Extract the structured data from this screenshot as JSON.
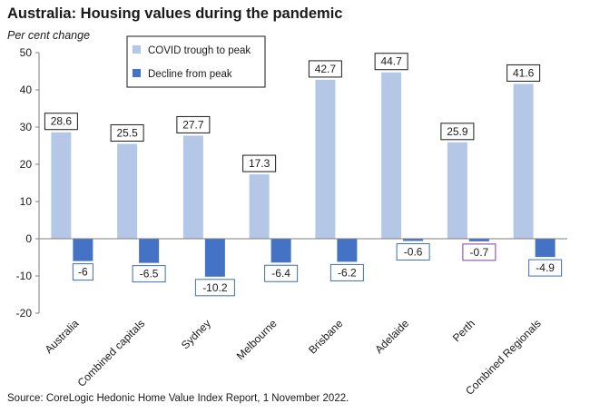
{
  "title": "Australia: Housing values during the pandemic",
  "source": "Source: CoreLogic Hedonic Home Value Index Report, 1 November 2022.",
  "chart_data": {
    "type": "bar",
    "title": "Australia: Housing values during the pandemic",
    "ylabel": "Per cent change",
    "xlabel": "",
    "ylim": [
      -20,
      50
    ],
    "yticks": [
      -20,
      -10,
      0,
      10,
      20,
      30,
      40,
      50
    ],
    "categories": [
      "Australia",
      "Combined capitals",
      "Sydney",
      "Melbourne",
      "Brisbane",
      "Adelaide",
      "Perth",
      "Combined Regionals"
    ],
    "series": [
      {
        "name": "COVID trough to peak",
        "color": "#b4c7e7",
        "values": [
          28.6,
          25.5,
          27.7,
          17.3,
          42.7,
          44.7,
          25.9,
          41.6
        ]
      },
      {
        "name": "Decline from peak",
        "color": "#4472c4",
        "values": [
          -6,
          -6.5,
          -10.2,
          -6.4,
          -6.2,
          -0.6,
          -0.7,
          -4.9
        ]
      }
    ],
    "label_border_colors": {
      "COVID trough to peak": [
        "#1a1a1a",
        "#1a1a1a",
        "#1a1a1a",
        "#1a1a1a",
        "#1a1a1a",
        "#1a1a1a",
        "#1a1a1a",
        "#1a1a1a"
      ],
      "Decline from peak": [
        "#3f6fa8",
        "#3f6fa8",
        "#3f6fa8",
        "#3f6fa8",
        "#3f6fa8",
        "#3f6fa8",
        "#7b3f9a",
        "#3f6fa8"
      ]
    },
    "legend_position": "top-left",
    "grid": false
  }
}
